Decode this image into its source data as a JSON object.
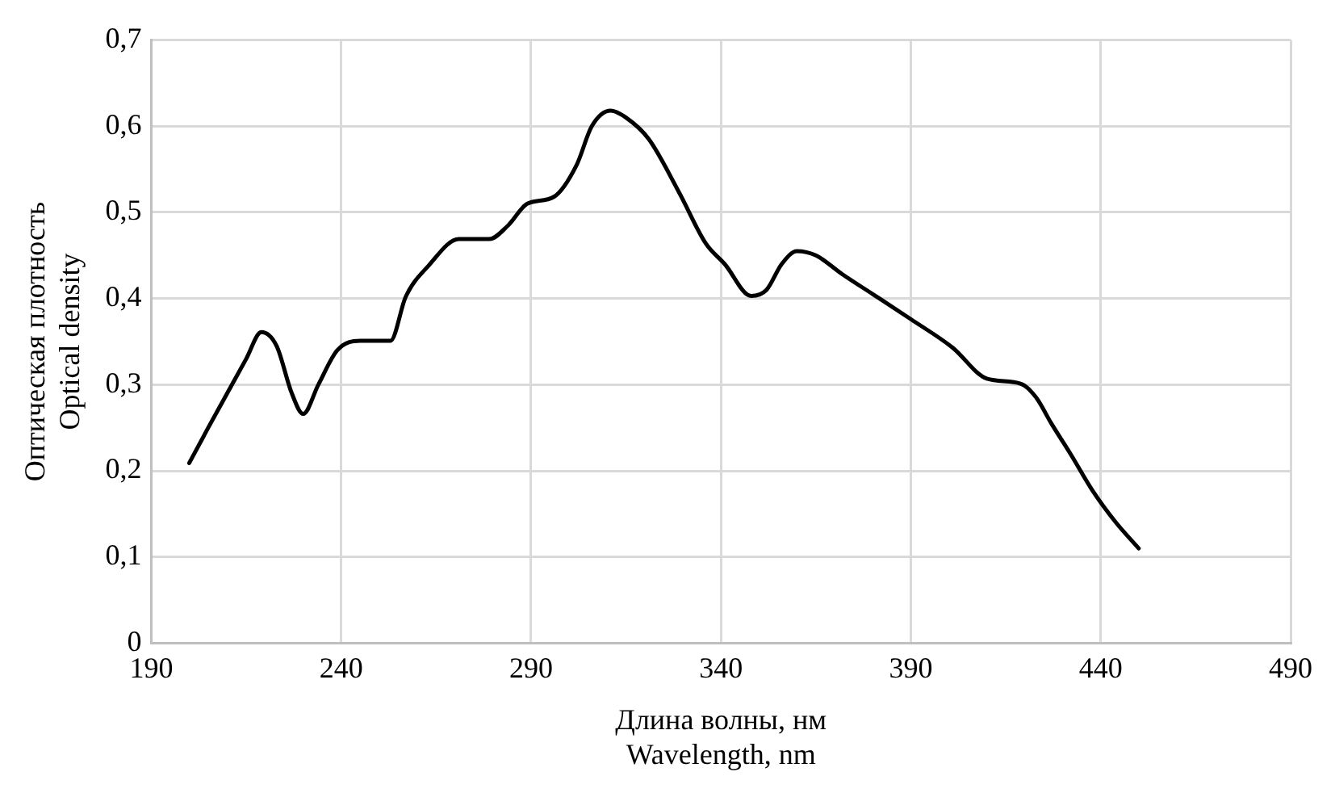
{
  "chart_data": {
    "type": "line",
    "xlabel": "Длина волны, нм\nWavelength, nm",
    "ylabel": "Оптическая плотность\nOptical density",
    "xlim": [
      190,
      490
    ],
    "xticks": [
      190,
      240,
      290,
      340,
      390,
      440,
      490
    ],
    "ylim": [
      0,
      0.7
    ],
    "yticks": [
      0,
      {
        "value": 0.1,
        "label": "0,1"
      },
      {
        "value": 0.2,
        "label": "0,2"
      },
      {
        "value": 0.3,
        "label": "0,3"
      },
      {
        "value": 0.4,
        "label": "0,4"
      },
      {
        "value": 0.5,
        "label": "0,5"
      },
      {
        "value": 0.6,
        "label": "0,6"
      },
      {
        "value": 0.7,
        "label": "0,7"
      }
    ],
    "grid": true,
    "legend": false,
    "marker": "none",
    "line_style": "solid",
    "series": [
      {
        "color": "#000000",
        "x": [
          200,
          205,
          210,
          215,
          219,
          223,
          227,
          230,
          234,
          239,
          245,
          253,
          257,
          263,
          271,
          279,
          284,
          289,
          296,
          302,
          306,
          311,
          315,
          321,
          329,
          336,
          341,
          348,
          352,
          356,
          360,
          365,
          372,
          380,
          390,
          401,
          410,
          419,
          423,
          427,
          432,
          438,
          444,
          450
        ],
        "values": [
          0.209,
          0.25,
          0.29,
          0.33,
          0.361,
          0.345,
          0.29,
          0.266,
          0.3,
          0.34,
          0.351,
          0.351,
          0.402,
          0.438,
          0.469,
          0.469,
          0.485,
          0.51,
          0.518,
          0.555,
          0.6,
          0.618,
          0.61,
          0.585,
          0.523,
          0.464,
          0.44,
          0.403,
          0.41,
          0.44,
          0.455,
          0.45,
          0.428,
          0.405,
          0.376,
          0.343,
          0.307,
          0.301,
          0.285,
          0.255,
          0.22,
          0.176,
          0.14,
          0.11
        ]
      }
    ]
  }
}
